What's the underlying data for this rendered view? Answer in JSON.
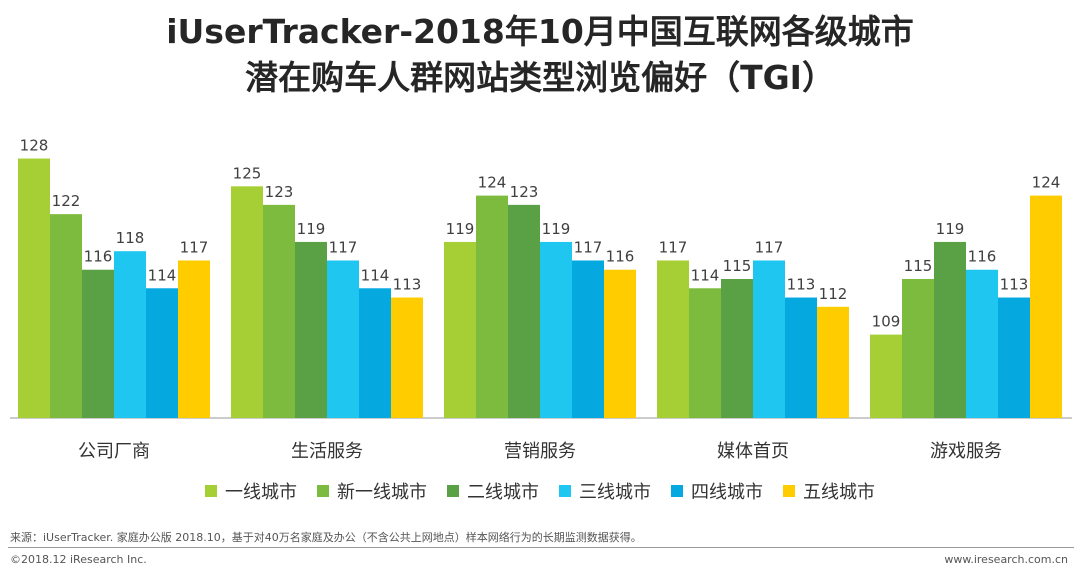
{
  "title_line1": "iUserTracker-2018年10月中国互联网各级城市",
  "title_line2": "潜在购车人群网站类型浏览偏好（TGI）",
  "chart_data": {
    "type": "bar",
    "title": "iUserTracker-2018年10月中国互联网各级城市潜在购车人群网站类型浏览偏好（TGI）",
    "categories": [
      "公司厂商",
      "生活服务",
      "营销服务",
      "媒体首页",
      "游戏服务"
    ],
    "series": [
      {
        "name": "一线城市",
        "color": "#a6cf35",
        "values": [
          128,
          125,
          119,
          117,
          109
        ]
      },
      {
        "name": "新一线城市",
        "color": "#7dbb3f",
        "values": [
          122,
          123,
          124,
          114,
          115
        ]
      },
      {
        "name": "二线城市",
        "color": "#5aa145",
        "values": [
          116,
          119,
          123,
          115,
          119
        ]
      },
      {
        "name": "三线城市",
        "color": "#1fc7f0",
        "values": [
          118,
          117,
          119,
          117,
          116
        ]
      },
      {
        "name": "四线城市",
        "color": "#06a8e0",
        "values": [
          114,
          114,
          117,
          113,
          113
        ]
      },
      {
        "name": "五线城市",
        "color": "#ffcc00",
        "values": [
          117,
          113,
          116,
          112,
          124
        ]
      }
    ],
    "ylim": [
      100,
      130
    ],
    "xlabel": "",
    "ylabel": "",
    "grid": false,
    "legend_position": "bottom"
  },
  "footer": {
    "source": "来源：iUserTracker. 家庭办公版 2018.10，基于对40万名家庭及办公（不含公共上网地点）样本网络行为的长期监测数据获得。",
    "copyright": "©2018.12 iResearch Inc.",
    "website": "www.iresearch.com.cn"
  }
}
